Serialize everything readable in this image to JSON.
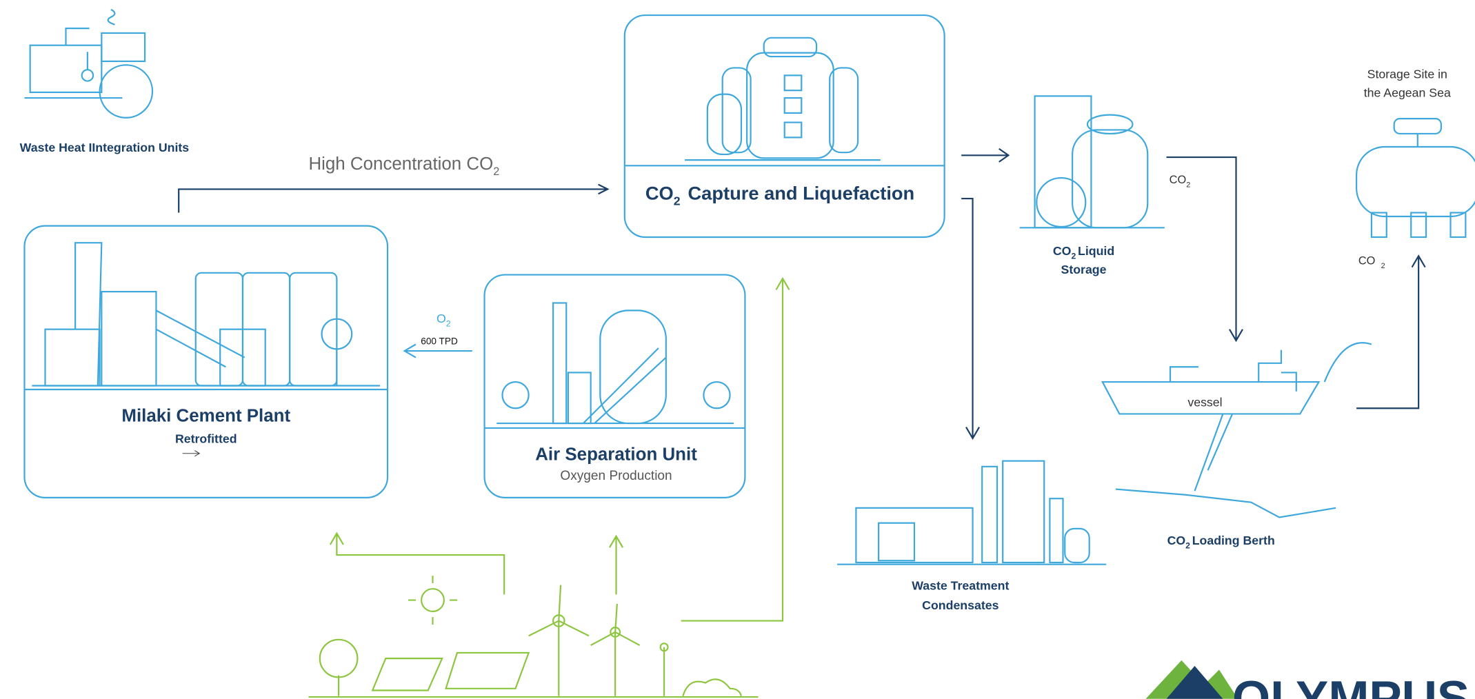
{
  "title_capture": {
    "main": "CO",
    "sub": "2",
    "rest": "Capture and Liquefaction"
  },
  "waste_heat": {
    "label": "Waste Heat IIntegration Units"
  },
  "high_concentration": {
    "main": "High Concentration CO",
    "sub": "2"
  },
  "cement_plant": {
    "title": "Milaki Cement Plant",
    "subtitle": "Retrofitted"
  },
  "oxygen_flow": {
    "main": "O",
    "sub": "2",
    "rate": "600 TPD"
  },
  "air_separation": {
    "title": "Air Separation Unit",
    "subtitle": "Oxygen Production"
  },
  "liquid_storage": {
    "main": "CO",
    "sub": "2",
    "rest": "Liquid",
    "line2": "Storage"
  },
  "storage_flow": {
    "main": "CO",
    "sub": "2"
  },
  "storage_site": {
    "line1": "Storage Site in",
    "line2": "the Aegean Sea"
  },
  "site_flow": {
    "main": "CO",
    "sub": "2"
  },
  "vessel": {
    "label": "vessel"
  },
  "loading_berth": {
    "main": "CO",
    "sub": "2",
    "rest": "Loading Berth"
  },
  "waste_treatment": {
    "line1": "Waste Treatment",
    "line2": "Condensates"
  },
  "logo": {
    "text": "OLYMPUS"
  }
}
